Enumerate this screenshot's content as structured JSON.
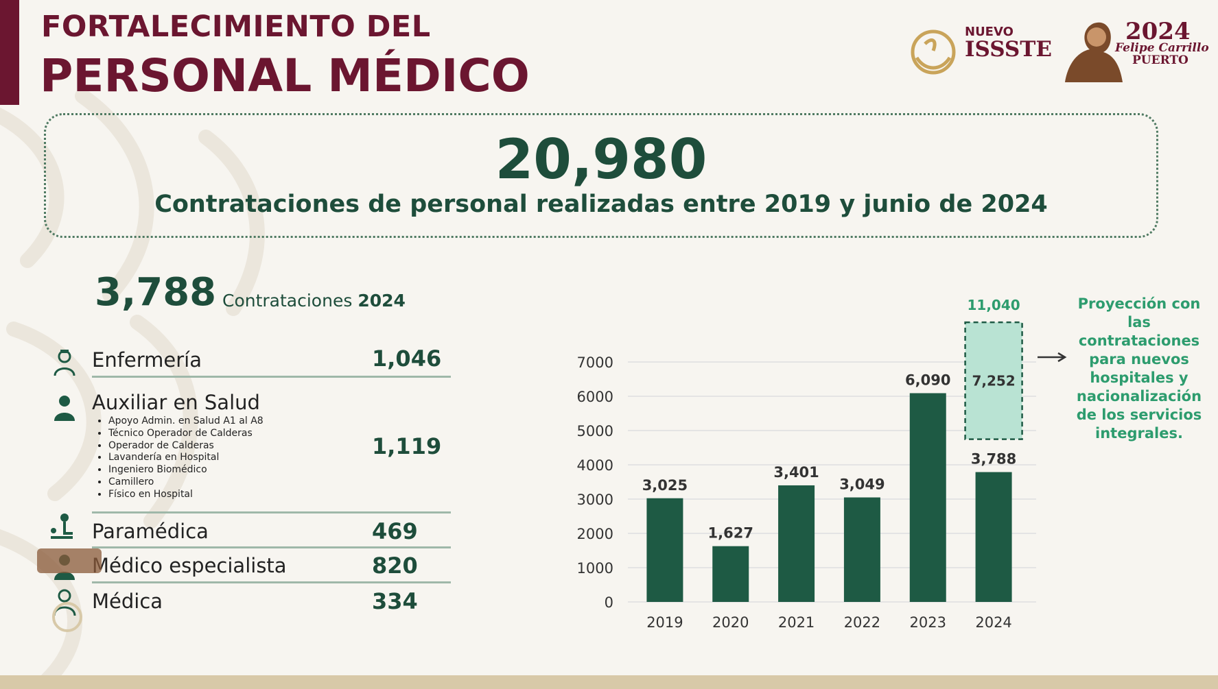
{
  "header": {
    "title_line1": "FORTALECIMIENTO DEL",
    "title_line2": "PERSONAL MÉDICO"
  },
  "logos": {
    "issste_line1": "NUEVO",
    "issste_line2": "ISSSTE",
    "year_logo": "2024",
    "year_logo_line1": "Felipe Carrillo",
    "year_logo_line2": "PUERTO"
  },
  "summary": {
    "total": "20,980",
    "description": "Contrataciones de personal realizadas entre 2019 y junio de 2024"
  },
  "year2024": {
    "total": "3,788",
    "label": "Contrataciones",
    "year": "2024"
  },
  "categories": [
    {
      "name": "Enfermería",
      "value": "1,046",
      "icon": "nurse-icon"
    },
    {
      "name": "Auxiliar en Salud",
      "value": "1,119",
      "icon": "health-assistant-icon",
      "subitems": [
        "Apoyo Admin. en Salud A1 al A8",
        "Técnico Operador de Calderas",
        "Operador de Calderas",
        "Lavandería en Hospital",
        "Ingeniero Biomédico",
        "Camillero",
        "Físico en Hospital"
      ]
    },
    {
      "name": "Paramédica",
      "value": "469",
      "icon": "paramedic-icon"
    },
    {
      "name": "Médico especialista",
      "value": "820",
      "icon": "specialist-icon"
    },
    {
      "name": "Médica",
      "value": "334",
      "icon": "doctor-icon"
    }
  ],
  "chart_data": {
    "type": "bar",
    "categories": [
      "2019",
      "2020",
      "2021",
      "2022",
      "2023",
      "2024"
    ],
    "values": [
      3025,
      1627,
      3401,
      3049,
      6090,
      3788
    ],
    "value_labels": [
      "3,025",
      "1,627",
      "3,401",
      "3,049",
      "6,090",
      "3,788"
    ],
    "projection": {
      "category": "2024",
      "base": 3788,
      "added": 7252,
      "added_label": "7,252",
      "total": 11040,
      "total_label": "11,040"
    },
    "projection_note": "Proyección con las contrataciones para nuevos hospitales y nacionalización de los servicios integrales.",
    "yticks": [
      0,
      1000,
      2000,
      3000,
      4000,
      5000,
      6000,
      7000
    ],
    "ylim": [
      0,
      7000
    ],
    "grid": true,
    "colors": {
      "bar": "#1e5a44",
      "projection_fill": "#b9e3d3",
      "projection_border": "#1e5a44",
      "projection_text": "#2d9c6e"
    }
  }
}
